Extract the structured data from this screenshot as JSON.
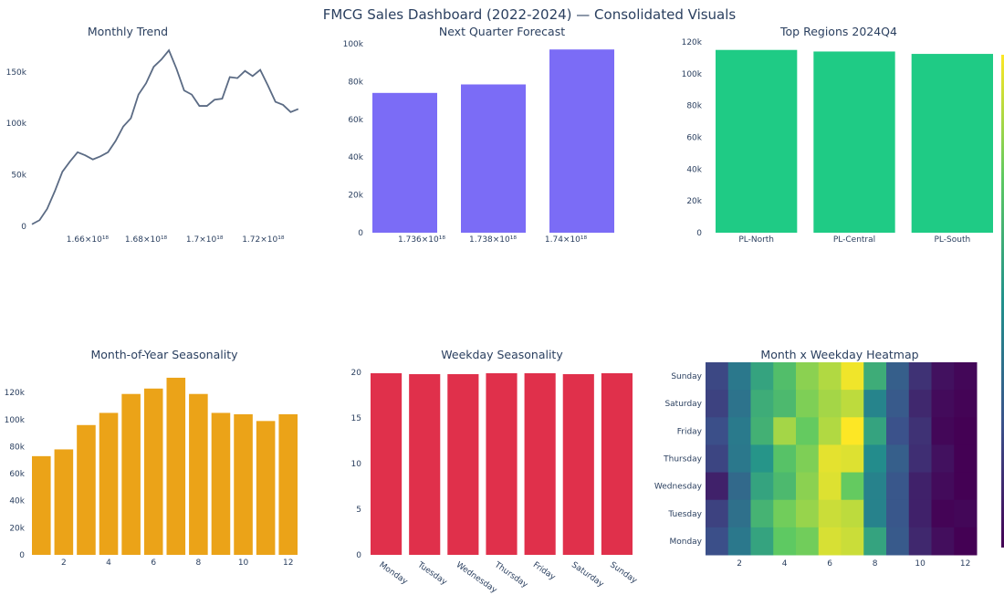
{
  "page_title": "FMCG Sales Dashboard (2022-2024) — Consolidated Visuals",
  "chart_data": [
    {
      "id": "monthly_trend",
      "type": "line",
      "title": "Monthly Trend",
      "color": "#5b6b84",
      "x_ticks": [
        "1.66×10¹⁸",
        "1.68×10¹⁸",
        "1.7×10¹⁸",
        "1.72×10¹⁸"
      ],
      "x_tick_values": [
        1.66e+18,
        1.68e+18,
        1.7e+18,
        1.72e+18
      ],
      "xlim": [
        1.641e+18,
        1.733e+18
      ],
      "y_ticks": [
        "0",
        "50k",
        "100k",
        "150k"
      ],
      "ylim": [
        0,
        180000
      ],
      "x": [
        1.641e+18,
        1.6436e+18,
        1.6462e+18,
        1.6488e+18,
        1.6514e+18,
        1.654e+18,
        1.6566e+18,
        1.6592e+18,
        1.6618e+18,
        1.6644e+18,
        1.667e+18,
        1.6696e+18,
        1.6722e+18,
        1.6748e+18,
        1.6774e+18,
        1.68e+18,
        1.6826e+18,
        1.6852e+18,
        1.6878e+18,
        1.6904e+18,
        1.693e+18,
        1.6956e+18,
        1.6982e+18,
        1.7008e+18,
        1.7034e+18,
        1.706e+18,
        1.7086e+18,
        1.7112e+18,
        1.7138e+18,
        1.7164e+18,
        1.719e+18,
        1.7216e+18,
        1.7242e+18,
        1.7268e+18,
        1.7294e+18,
        1.732e+18
      ],
      "y": [
        2000,
        6000,
        17000,
        34000,
        53000,
        63000,
        72000,
        69000,
        65000,
        68000,
        72000,
        83000,
        97000,
        105000,
        128000,
        139000,
        155000,
        162000,
        171000,
        153000,
        132000,
        128000,
        117000,
        117000,
        123000,
        124000,
        145000,
        144000,
        151000,
        146000,
        152000,
        137000,
        121000,
        118000,
        111000,
        114000
      ]
    },
    {
      "id": "forecast",
      "type": "bar",
      "title": "Next Quarter Forecast",
      "color": "#7b6cf6",
      "x_ticks": [
        "1.736×10¹⁸",
        "1.738×10¹⁸",
        "1.74×10¹⁸"
      ],
      "y_ticks": [
        "0",
        "20k",
        "40k",
        "60k",
        "80k",
        "100k"
      ],
      "ylim": [
        0,
        100000
      ],
      "values": [
        74000,
        78500,
        97000
      ]
    },
    {
      "id": "top_regions",
      "type": "bar",
      "title": "Top Regions 2024Q4",
      "color": "#1fcb85",
      "categories": [
        "PL-North",
        "PL-Central",
        "PL-South"
      ],
      "y_ticks": [
        "0",
        "20k",
        "40k",
        "60k",
        "80k",
        "100k",
        "120k"
      ],
      "ylim": [
        0,
        120000
      ],
      "values": [
        115000,
        114000,
        112500
      ]
    },
    {
      "id": "month_seasonality",
      "type": "bar",
      "title": "Month-of-Year Seasonality",
      "color": "#eba318",
      "categories": [
        1,
        2,
        3,
        4,
        5,
        6,
        7,
        8,
        9,
        10,
        11,
        12
      ],
      "x_tick_labels": [
        "2",
        "4",
        "6",
        "8",
        "10",
        "12"
      ],
      "y_ticks": [
        "0",
        "20k",
        "40k",
        "60k",
        "80k",
        "100k",
        "120k"
      ],
      "ylim": [
        0,
        135000
      ],
      "values": [
        73000,
        78000,
        96000,
        105000,
        119000,
        123000,
        131000,
        119000,
        105000,
        104000,
        99000,
        104000
      ]
    },
    {
      "id": "weekday_seasonality",
      "type": "bar",
      "title": "Weekday Seasonality",
      "color": "#e0304b",
      "categories": [
        "Monday",
        "Tuesday",
        "Wednesday",
        "Thursday",
        "Friday",
        "Saturday",
        "Sunday"
      ],
      "y_ticks": [
        "0",
        "5",
        "10",
        "15",
        "20"
      ],
      "ylim": [
        0,
        20
      ],
      "values": [
        19.9,
        19.8,
        19.8,
        19.9,
        19.9,
        19.8,
        19.9
      ]
    },
    {
      "id": "heatmap",
      "type": "heatmap",
      "title": "Month x Weekday Heatmap",
      "x_tick_labels": [
        "2",
        "4",
        "6",
        "8",
        "10",
        "12"
      ],
      "rows": [
        "Sunday",
        "Saturday",
        "Friday",
        "Thursday",
        "Wednesday",
        "Tuesday",
        "Monday"
      ],
      "z": [
        [
          0.22,
          0.4,
          0.58,
          0.7,
          0.82,
          0.88,
          0.98,
          0.62,
          0.3,
          0.15,
          0.05,
          0.02
        ],
        [
          0.2,
          0.38,
          0.62,
          0.68,
          0.8,
          0.86,
          0.9,
          0.45,
          0.28,
          0.12,
          0.03,
          0.01
        ],
        [
          0.24,
          0.41,
          0.64,
          0.86,
          0.76,
          0.88,
          1.0,
          0.58,
          0.25,
          0.15,
          0.02,
          0.0
        ],
        [
          0.21,
          0.4,
          0.52,
          0.72,
          0.8,
          0.96,
          0.95,
          0.48,
          0.3,
          0.14,
          0.05,
          0.0
        ],
        [
          0.1,
          0.34,
          0.58,
          0.68,
          0.82,
          0.95,
          0.76,
          0.44,
          0.27,
          0.1,
          0.03,
          0.0
        ],
        [
          0.2,
          0.37,
          0.65,
          0.78,
          0.84,
          0.92,
          0.9,
          0.44,
          0.27,
          0.1,
          0.01,
          0.02
        ],
        [
          0.24,
          0.4,
          0.58,
          0.75,
          0.78,
          0.94,
          0.92,
          0.58,
          0.28,
          0.12,
          0.04,
          0.0
        ]
      ]
    }
  ]
}
